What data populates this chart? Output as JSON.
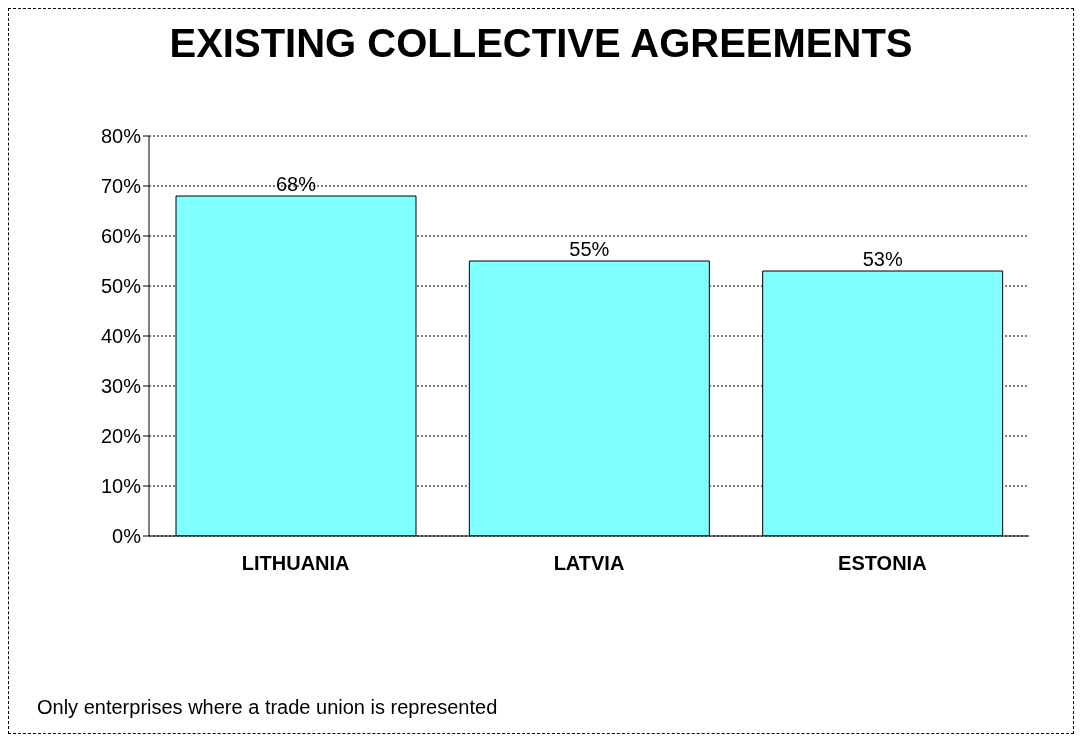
{
  "chart_data": {
    "type": "bar",
    "title": "EXISTING COLLECTIVE AGREEMENTS",
    "categories": [
      "LITHUANIA",
      "LATVIA",
      "ESTONIA"
    ],
    "values": [
      68,
      55,
      53
    ],
    "value_labels": [
      "68%",
      "55%",
      "53%"
    ],
    "color": "#80ffff",
    "ylim": [
      0,
      80
    ],
    "yticks": [
      {
        "value": 0,
        "label": "0%"
      },
      {
        "value": 10,
        "label": "10%"
      },
      {
        "value": 20,
        "label": "20%"
      },
      {
        "value": 30,
        "label": "30%"
      },
      {
        "value": 40,
        "label": "40%"
      },
      {
        "value": 50,
        "label": "50%"
      },
      {
        "value": 60,
        "label": "60%"
      },
      {
        "value": 70,
        "label": "70%"
      },
      {
        "value": 80,
        "label": "80%"
      }
    ],
    "grid": "y",
    "annotations": [
      "Only enterprises where a trade union is represented"
    ]
  }
}
